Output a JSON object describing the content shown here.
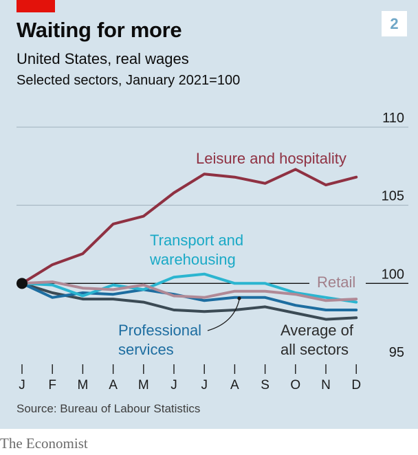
{
  "header": {
    "title": "Waiting for more",
    "subtitle": "United States, real wages",
    "subtitle2": "Selected sectors, January 2021=100",
    "badge": "2"
  },
  "footer": {
    "source": "Source: Bureau of Labour Statistics",
    "brand": "The Economist"
  },
  "colors": {
    "background": "#d5e3ec",
    "accent_tag": "#e3120b",
    "leisure": "#8f3142",
    "transport": "#2bb5d0",
    "retail": "#b08996",
    "professional": "#1d6da0",
    "average": "#3b4a54"
  },
  "chart_data": {
    "type": "line",
    "categories": [
      "J",
      "F",
      "M",
      "A",
      "M",
      "J",
      "J",
      "A",
      "S",
      "O",
      "N",
      "D"
    ],
    "ylim": [
      95,
      110
    ],
    "y_ticks": [
      "110",
      "105",
      "100",
      "95"
    ],
    "y_tick_values": [
      110,
      105,
      100,
      95
    ],
    "baseline": 100,
    "grid": true,
    "series": [
      {
        "name": "Leisure and hospitality",
        "color": "#8f3142",
        "label": "Leisure and hospitality",
        "values": [
          100,
          101.2,
          101.9,
          103.8,
          104.3,
          105.8,
          107.0,
          106.8,
          106.4,
          107.3,
          106.3,
          106.8
        ]
      },
      {
        "name": "Transport and warehousing",
        "color": "#2bb5d0",
        "label": "Transport and warehousing",
        "values": [
          100,
          99.9,
          99.2,
          99.9,
          99.6,
          100.4,
          100.6,
          100.0,
          100.0,
          99.4,
          99.1,
          98.8
        ]
      },
      {
        "name": "Retail",
        "color": "#b08996",
        "label": "Retail",
        "values": [
          100,
          100.1,
          99.7,
          99.6,
          99.9,
          99.2,
          99.1,
          99.5,
          99.5,
          99.3,
          98.9,
          99.0
        ]
      },
      {
        "name": "Professional services",
        "color": "#1d6da0",
        "label": "Professional services",
        "values": [
          100,
          99.1,
          99.4,
          99.3,
          99.6,
          99.3,
          98.9,
          99.1,
          99.1,
          98.6,
          98.3,
          98.3
        ]
      },
      {
        "name": "Average of all sectors",
        "color": "#3b4a54",
        "label": "Average of all sectors",
        "values": [
          100,
          99.4,
          99.0,
          99.0,
          98.8,
          98.3,
          98.2,
          98.3,
          98.5,
          98.1,
          97.7,
          97.8
        ]
      }
    ]
  }
}
